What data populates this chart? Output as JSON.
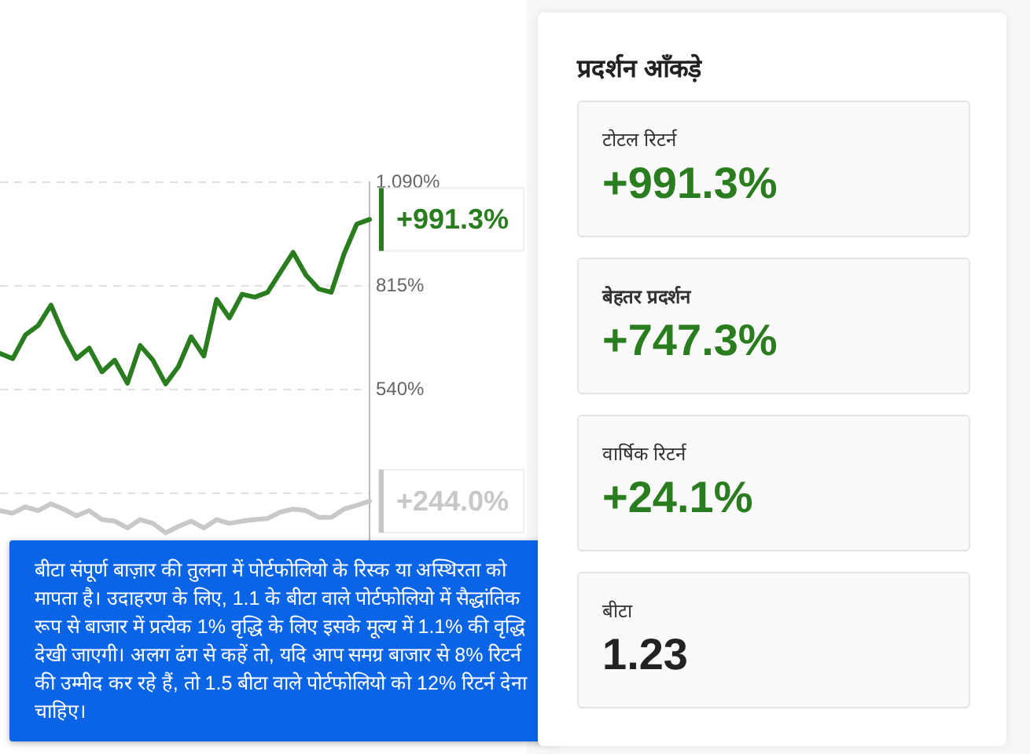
{
  "chart_data": [
    {
      "type": "line",
      "categories": [
        null,
        null,
        null,
        null,
        null,
        null,
        null,
        null,
        null,
        null,
        null,
        null,
        null,
        null,
        null,
        null,
        null,
        null,
        null,
        null,
        null,
        null,
        null,
        null,
        null,
        null,
        null,
        null,
        null,
        null
      ],
      "series": [
        {
          "color": "#2a7d1e",
          "values": [
            636,
            622,
            685,
            710,
            764,
            685,
            622,
            650,
            587,
            618,
            557,
            657,
            618,
            555,
            601,
            680,
            629,
            779,
            730,
            793,
            785,
            798,
            851,
            904,
            844,
            807,
            798,
            900,
            979,
            991.3
          ],
          "value_labels": [
            null,
            null,
            null,
            null,
            null,
            null,
            null,
            null,
            null,
            null,
            null,
            null,
            null,
            null,
            null,
            null,
            null,
            null,
            null,
            null,
            null,
            null,
            null,
            null,
            null,
            null,
            null,
            null,
            null,
            "+991.3%"
          ]
        },
        {
          "color": "#c8c8c8",
          "values": [
            219,
            212,
            229,
            219,
            237,
            223,
            205,
            219,
            195,
            191,
            173,
            195,
            185,
            160,
            177,
            191,
            173,
            195,
            185,
            191,
            195,
            198,
            215,
            223,
            219,
            201,
            201,
            223,
            233,
            244
          ],
          "value_labels": [
            null,
            null,
            null,
            null,
            null,
            null,
            null,
            null,
            null,
            null,
            null,
            null,
            null,
            null,
            null,
            null,
            null,
            null,
            null,
            null,
            null,
            null,
            null,
            null,
            null,
            null,
            null,
            null,
            null,
            "+244.0%"
          ]
        }
      ],
      "ylim": [
        -10,
        1090
      ],
      "yticks": [
        {
          "value": 1090,
          "label": "1,090%"
        },
        {
          "value": 815,
          "label": "815%"
        },
        {
          "value": 540,
          "label": "540%"
        },
        {
          "value": 265,
          "label": null
        }
      ],
      "grid": "y",
      "tick_labels": "y",
      "marker": "none",
      "line_style": "solid",
      "annotations": [
        "बीटा संपूर्ण बाज़ार की तुलना में पोर्टफोलियो के रिस्क या अस्थिरता को मापता है। उदाहरण के लिए, 1.1 के बीटा वाले पोर्टफोलियो में सैद्धांतिक रूप से बाजार में प्रत्येक 1% वृद्धि के लिए इसके मूल्य में 1.1% की वृद्धि देखी जाएगी। अलग ढंग से कहें तो, यदि आप समग्र बाजार से 8% रिटर्न की उम्मीद कर रहे हैं, तो 1.5 बीटा वाले पोर्टफोलियो को 12% रिटर्न देना चाहिए।"
      ]
    },
    {
      "type": "other",
      "title": "प्रदर्शन आँकड़े",
      "annotations": [
        "टोटल रिटर्न",
        "+991.3%",
        "बेहतर प्रदर्शन",
        "+747.3%",
        "वार्षिक रिटर्न",
        "+24.1%",
        "बीटा",
        "1.23"
      ],
      "colors": [
        "#2a7d1e",
        "#2a7d1e",
        "#2a7d1e",
        "#222222"
      ]
    }
  ]
}
